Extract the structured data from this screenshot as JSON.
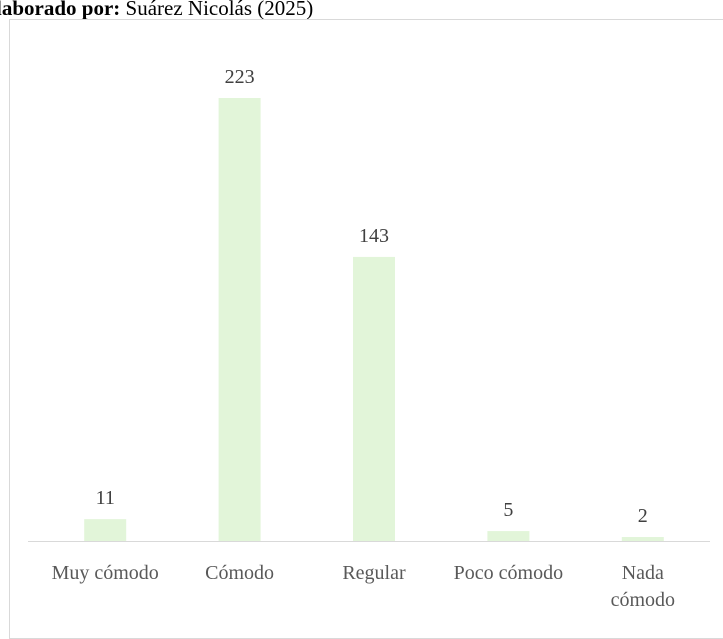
{
  "source": {
    "prefix": "laborado por:",
    "text": "Suárez Nicolás (2025)"
  },
  "chart_data": {
    "type": "bar",
    "categories": [
      [
        "Muy cómodo"
      ],
      [
        "Cómodo"
      ],
      [
        "Regular"
      ],
      [
        "Poco cómodo"
      ],
      [
        "Nada",
        "cómodo"
      ]
    ],
    "values": [
      11,
      223,
      143,
      5,
      2
    ],
    "data_labels": [
      "11",
      "223",
      "143",
      "5",
      "2"
    ],
    "bar_color": "#e2f5d9",
    "axis_color": "#d9d9d9",
    "ylim": [
      0,
      230
    ],
    "grid": false,
    "legend": "none"
  }
}
